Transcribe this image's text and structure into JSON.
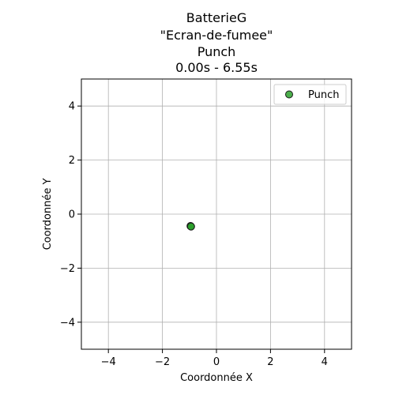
{
  "chart_data": {
    "type": "scatter",
    "title_lines": [
      "BatterieG",
      "\"Ecran-de-fumee\"",
      "Punch",
      "0.00s - 6.55s"
    ],
    "xlabel": "Coordonnée X",
    "ylabel": "Coordonnée Y",
    "xlim": [
      -5,
      5
    ],
    "ylim": [
      -5,
      5
    ],
    "xticks": [
      -4,
      -2,
      0,
      2,
      4
    ],
    "yticks": [
      -4,
      -2,
      0,
      2,
      4
    ],
    "grid": true,
    "legend_position": "top-right",
    "series": [
      {
        "name": "Punch",
        "color": "#2ca02c",
        "edge_color": "#1a1a1a",
        "points": [
          {
            "x": -0.95,
            "y": -0.45
          },
          {
            "x": -0.96,
            "y": -0.44
          },
          {
            "x": -0.94,
            "y": -0.46
          }
        ]
      }
    ]
  }
}
